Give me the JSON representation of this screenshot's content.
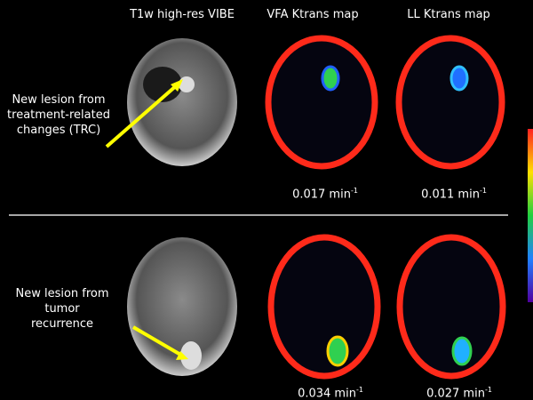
{
  "headers": [
    "T1w high-res VIBE",
    "VFA Ktrans map",
    "LL Ktrans map"
  ],
  "rows": [
    {
      "annotation": [
        "New lesion from",
        "treatment-related",
        "changes (TRC)"
      ],
      "values": [
        {
          "text": "0.017 min",
          "exponent": "-1"
        },
        {
          "text": "0.011 min",
          "exponent": "-1"
        }
      ]
    },
    {
      "annotation": [
        "New lesion from",
        "tumor",
        "recurrence"
      ],
      "values": [
        {
          "text": "0.034 min",
          "exponent": "-1"
        },
        {
          "text": "0.027 min",
          "exponent": "-1"
        }
      ]
    }
  ]
}
